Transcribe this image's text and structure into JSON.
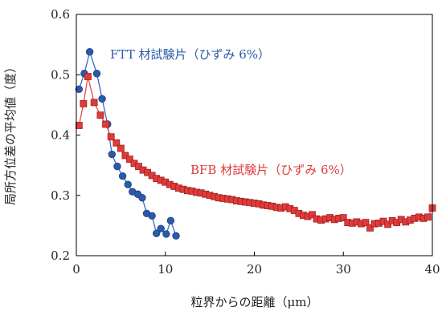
{
  "chart_data": {
    "type": "scatter",
    "title": "",
    "xlabel": "粒界からの距離（μm）",
    "ylabel": "局所方位差の平均値（度）",
    "xlim": [
      0,
      40
    ],
    "ylim": [
      0.2,
      0.6
    ],
    "xticks": [
      0,
      10,
      20,
      30,
      40
    ],
    "yticks": [
      0.2,
      0.3,
      0.4,
      0.5,
      0.6
    ],
    "xtick_labels": [
      "0",
      "10",
      "20",
      "30",
      "40"
    ],
    "ytick_labels": [
      "0.2",
      "0.3",
      "0.4",
      "0.5",
      "0.6"
    ],
    "grid": false,
    "legend": "none",
    "series": [
      {
        "name": "FTT 材試験片（ひずみ 6%）",
        "color": "#2a5aa8",
        "line_color": "#3a6cc0",
        "marker": "circle",
        "x": [
          0.3,
          0.9,
          1.5,
          2.3,
          2.9,
          3.5,
          4.0,
          4.6,
          5.2,
          5.8,
          6.3,
          6.9,
          7.4,
          7.9,
          8.5,
          9.0,
          9.5,
          10.1,
          10.6,
          11.2
        ],
        "y": [
          0.476,
          0.502,
          0.538,
          0.502,
          0.46,
          0.418,
          0.368,
          0.348,
          0.332,
          0.318,
          0.306,
          0.302,
          0.296,
          0.27,
          0.266,
          0.237,
          0.245,
          0.236,
          0.258,
          0.233
        ]
      },
      {
        "name": "BFB 材試験片（ひずみ 6%）",
        "color": "#e03a3a",
        "line_color": "#e84a4a",
        "marker": "square",
        "x": [
          0.3,
          0.8,
          1.3,
          2.0,
          2.7,
          3.3,
          3.9,
          4.5,
          5.0,
          5.5,
          6.0,
          6.5,
          7.0,
          7.5,
          8.0,
          8.5,
          9.0,
          9.5,
          10.0,
          10.5,
          11.0,
          11.5,
          12.0,
          12.5,
          13.0,
          13.5,
          14.0,
          14.5,
          15.0,
          15.5,
          16.0,
          16.5,
          17.0,
          17.5,
          18.0,
          18.5,
          19.0,
          19.5,
          20.0,
          20.5,
          21.0,
          21.5,
          22.0,
          22.5,
          23.0,
          23.5,
          24.0,
          24.5,
          25.0,
          25.5,
          26.0,
          26.5,
          27.0,
          27.5,
          28.0,
          28.5,
          29.0,
          29.5,
          30.0,
          30.5,
          31.0,
          31.5,
          32.0,
          32.5,
          33.0,
          33.5,
          34.0,
          34.5,
          35.0,
          35.5,
          36.0,
          36.5,
          37.0,
          37.5,
          38.0,
          38.5,
          39.0,
          39.5,
          40.0
        ],
        "y": [
          0.416,
          0.452,
          0.497,
          0.454,
          0.433,
          0.418,
          0.397,
          0.387,
          0.378,
          0.366,
          0.36,
          0.353,
          0.348,
          0.342,
          0.338,
          0.333,
          0.328,
          0.325,
          0.322,
          0.318,
          0.315,
          0.312,
          0.31,
          0.308,
          0.307,
          0.305,
          0.304,
          0.302,
          0.3,
          0.298,
          0.296,
          0.295,
          0.294,
          0.293,
          0.291,
          0.29,
          0.289,
          0.288,
          0.287,
          0.286,
          0.284,
          0.283,
          0.282,
          0.28,
          0.279,
          0.281,
          0.278,
          0.275,
          0.27,
          0.267,
          0.265,
          0.268,
          0.261,
          0.259,
          0.261,
          0.263,
          0.26,
          0.262,
          0.263,
          0.255,
          0.254,
          0.256,
          0.253,
          0.255,
          0.246,
          0.253,
          0.254,
          0.257,
          0.252,
          0.258,
          0.255,
          0.26,
          0.256,
          0.259,
          0.262,
          0.264,
          0.262,
          0.264,
          0.279
        ]
      }
    ]
  }
}
